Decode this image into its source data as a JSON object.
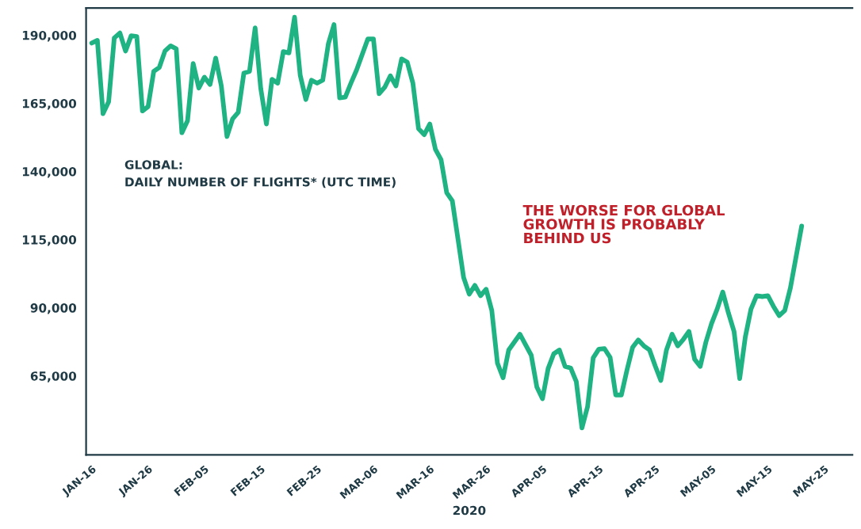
{
  "chart_data": {
    "type": "line",
    "title": "GLOBAL:\nDAILY NUMBER OF FLIGHTS* (UTC TIME)",
    "xlabel": "2020",
    "annotations": [
      "THE WORSE FOR GLOBAL\nGROWTH IS PROBABLY\nBEHIND US"
    ],
    "x": [
      "2020-01-16",
      "2020-01-17",
      "2020-01-18",
      "2020-01-19",
      "2020-01-20",
      "2020-01-21",
      "2020-01-22",
      "2020-01-23",
      "2020-01-24",
      "2020-01-25",
      "2020-01-26",
      "2020-01-27",
      "2020-01-28",
      "2020-01-29",
      "2020-01-30",
      "2020-01-31",
      "2020-02-01",
      "2020-02-02",
      "2020-02-03",
      "2020-02-04",
      "2020-02-05",
      "2020-02-06",
      "2020-02-07",
      "2020-02-08",
      "2020-02-09",
      "2020-02-10",
      "2020-02-11",
      "2020-02-12",
      "2020-02-13",
      "2020-02-14",
      "2020-02-15",
      "2020-02-16",
      "2020-02-17",
      "2020-02-18",
      "2020-02-19",
      "2020-02-20",
      "2020-02-21",
      "2020-02-22",
      "2020-02-23",
      "2020-02-24",
      "2020-02-25",
      "2020-02-26",
      "2020-02-27",
      "2020-02-28",
      "2020-02-29",
      "2020-03-01",
      "2020-03-02",
      "2020-03-03",
      "2020-03-05",
      "2020-03-06",
      "2020-03-07",
      "2020-03-08",
      "2020-03-09",
      "2020-03-10",
      "2020-03-11",
      "2020-03-12",
      "2020-03-13",
      "2020-03-14",
      "2020-03-15",
      "2020-03-16",
      "2020-03-17",
      "2020-03-18",
      "2020-03-19",
      "2020-03-20",
      "2020-03-21",
      "2020-03-22",
      "2020-03-23",
      "2020-03-24",
      "2020-03-25",
      "2020-03-26",
      "2020-03-27",
      "2020-03-28",
      "2020-03-29",
      "2020-03-30",
      "2020-03-31",
      "2020-04-01",
      "2020-04-02",
      "2020-04-03",
      "2020-04-04",
      "2020-04-05",
      "2020-04-06",
      "2020-04-07",
      "2020-04-08",
      "2020-04-09",
      "2020-04-10",
      "2020-04-11",
      "2020-04-12",
      "2020-04-13",
      "2020-04-14",
      "2020-04-15",
      "2020-04-16",
      "2020-04-17",
      "2020-04-18",
      "2020-04-19",
      "2020-04-20",
      "2020-04-21",
      "2020-04-22",
      "2020-04-23",
      "2020-04-24",
      "2020-04-25",
      "2020-04-26",
      "2020-04-27",
      "2020-04-28",
      "2020-04-29",
      "2020-04-30",
      "2020-05-01",
      "2020-05-02",
      "2020-05-03",
      "2020-05-04",
      "2020-05-05",
      "2020-05-06",
      "2020-05-07",
      "2020-05-08",
      "2020-05-09",
      "2020-05-10",
      "2020-05-11",
      "2020-05-12",
      "2020-05-13",
      "2020-05-14",
      "2020-05-15",
      "2020-05-16",
      "2020-05-17",
      "2020-05-18",
      "2020-05-19",
      "2020-05-21"
    ],
    "series": [
      {
        "color": "#1fb384",
        "values": [
          187100,
          188100,
          161200,
          165600,
          189000,
          190800,
          184200,
          189800,
          189500,
          162200,
          163800,
          176700,
          178200,
          184200,
          186100,
          185000,
          154200,
          158600,
          179600,
          170600,
          174600,
          171900,
          181600,
          171400,
          152800,
          159300,
          161700,
          176100,
          176700,
          192700,
          170400,
          157400,
          173800,
          172400,
          184000,
          183500,
          196600,
          175300,
          166400,
          173500,
          172400,
          173500,
          186900,
          193900,
          167000,
          167300,
          172400,
          177200,
          188600,
          188600,
          168500,
          170900,
          175100,
          171400,
          181300,
          180100,
          172400,
          155700,
          153500,
          157400,
          148100,
          144300,
          132200,
          129200,
          115200,
          101100,
          95000,
          98200,
          94400,
          96800,
          89000,
          69700,
          64300,
          74500,
          77400,
          80300,
          76400,
          72600,
          60900,
          56600,
          67700,
          73100,
          74500,
          68500,
          67900,
          62900,
          45900,
          53700,
          71600,
          74800,
          75000,
          71800,
          58000,
          58000,
          67200,
          75500,
          78200,
          76000,
          74500,
          68700,
          63300,
          74500,
          80300,
          76000,
          78400,
          81300,
          71100,
          68500,
          77400,
          84200,
          89500,
          95800,
          88100,
          81300,
          64000,
          79300,
          89500,
          94400,
          94100,
          94400,
          90500,
          87100,
          89000,
          97300,
          120000
        ]
      }
    ],
    "xlim": [
      "2020-01-15",
      "2020-05-30"
    ],
    "xticks": [
      {
        "value": "2020-01-16",
        "label": "JAN-16"
      },
      {
        "value": "2020-01-26",
        "label": "JAN-26"
      },
      {
        "value": "2020-02-05",
        "label": "FEB-05"
      },
      {
        "value": "2020-02-15",
        "label": "FEB-15"
      },
      {
        "value": "2020-02-25",
        "label": "FEB-25"
      },
      {
        "value": "2020-03-06",
        "label": "MAR-06"
      },
      {
        "value": "2020-03-16",
        "label": "MAR-16"
      },
      {
        "value": "2020-03-26",
        "label": "MAR-26"
      },
      {
        "value": "2020-04-05",
        "label": "APR-05"
      },
      {
        "value": "2020-04-15",
        "label": "APR-15"
      },
      {
        "value": "2020-04-25",
        "label": "APR-25"
      },
      {
        "value": "2020-05-05",
        "label": "MAY-05"
      },
      {
        "value": "2020-05-15",
        "label": "MAY-15"
      },
      {
        "value": "2020-05-25",
        "label": "MAY-25"
      }
    ],
    "ylim": [
      36000,
      200000
    ],
    "yticks": [
      {
        "value": 65000,
        "label": "65,000"
      },
      {
        "value": 90000,
        "label": "90,000"
      },
      {
        "value": 115000,
        "label": "115,000"
      },
      {
        "value": 140000,
        "label": "140,000"
      },
      {
        "value": 165000,
        "label": "165,000"
      },
      {
        "value": 190000,
        "label": "190,000"
      }
    ],
    "grid": false,
    "legend": false,
    "marker": "none",
    "line_style": "solid"
  }
}
